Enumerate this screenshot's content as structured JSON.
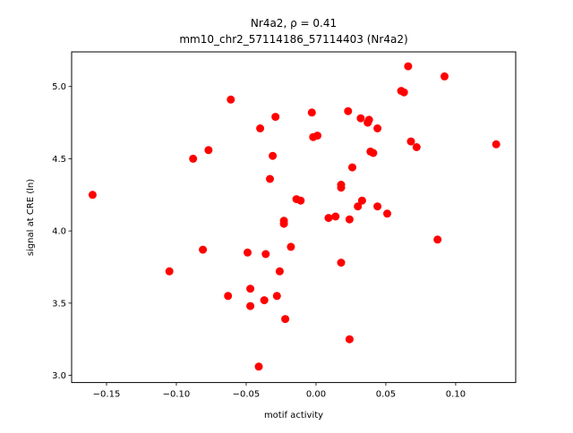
{
  "chart_data": {
    "type": "scatter",
    "title_line1": "Nr4a2, ρ = 0.41",
    "title_line2": "mm10_chr2_57114186_57114403 (Nr4a2)",
    "xlabel": "motif activity",
    "ylabel": "signal at CRE (ln)",
    "xlim": [
      -0.175,
      0.143
    ],
    "ylim": [
      2.95,
      5.24
    ],
    "xticks": [
      -0.15,
      -0.1,
      -0.05,
      0.0,
      0.05,
      0.1
    ],
    "xtick_labels": [
      "−0.15",
      "−0.10",
      "−0.05",
      "0.00",
      "0.05",
      "0.10"
    ],
    "yticks": [
      3.0,
      3.5,
      4.0,
      4.5,
      5.0
    ],
    "ytick_labels": [
      "3.0",
      "3.5",
      "4.0",
      "4.5",
      "5.0"
    ],
    "marker_color": "#ff0000",
    "grid": false,
    "points": [
      {
        "x": -0.16,
        "y": 4.25
      },
      {
        "x": -0.105,
        "y": 3.72
      },
      {
        "x": -0.088,
        "y": 4.5
      },
      {
        "x": -0.081,
        "y": 3.87
      },
      {
        "x": -0.077,
        "y": 4.56
      },
      {
        "x": -0.063,
        "y": 3.55
      },
      {
        "x": -0.061,
        "y": 4.91
      },
      {
        "x": -0.049,
        "y": 3.85
      },
      {
        "x": -0.047,
        "y": 3.48
      },
      {
        "x": -0.047,
        "y": 3.6
      },
      {
        "x": -0.04,
        "y": 4.71
      },
      {
        "x": -0.041,
        "y": 3.06
      },
      {
        "x": -0.037,
        "y": 3.52
      },
      {
        "x": -0.036,
        "y": 3.84
      },
      {
        "x": -0.033,
        "y": 4.36
      },
      {
        "x": -0.031,
        "y": 4.52
      },
      {
        "x": -0.029,
        "y": 4.79
      },
      {
        "x": -0.028,
        "y": 3.55
      },
      {
        "x": -0.026,
        "y": 3.72
      },
      {
        "x": -0.023,
        "y": 4.07
      },
      {
        "x": -0.023,
        "y": 4.05
      },
      {
        "x": -0.022,
        "y": 3.39
      },
      {
        "x": -0.018,
        "y": 3.89
      },
      {
        "x": -0.014,
        "y": 4.22
      },
      {
        "x": -0.011,
        "y": 4.21
      },
      {
        "x": -0.003,
        "y": 4.82
      },
      {
        "x": -0.002,
        "y": 4.65
      },
      {
        "x": 0.001,
        "y": 4.66
      },
      {
        "x": 0.009,
        "y": 4.09
      },
      {
        "x": 0.014,
        "y": 4.1
      },
      {
        "x": 0.018,
        "y": 4.32
      },
      {
        "x": 0.018,
        "y": 4.3
      },
      {
        "x": 0.018,
        "y": 3.78
      },
      {
        "x": 0.023,
        "y": 4.83
      },
      {
        "x": 0.024,
        "y": 4.08
      },
      {
        "x": 0.024,
        "y": 3.25
      },
      {
        "x": 0.026,
        "y": 4.44
      },
      {
        "x": 0.03,
        "y": 4.17
      },
      {
        "x": 0.032,
        "y": 4.78
      },
      {
        "x": 0.033,
        "y": 4.21
      },
      {
        "x": 0.037,
        "y": 4.75
      },
      {
        "x": 0.038,
        "y": 4.77
      },
      {
        "x": 0.039,
        "y": 4.55
      },
      {
        "x": 0.041,
        "y": 4.54
      },
      {
        "x": 0.044,
        "y": 4.71
      },
      {
        "x": 0.044,
        "y": 4.17
      },
      {
        "x": 0.051,
        "y": 4.12
      },
      {
        "x": 0.061,
        "y": 4.97
      },
      {
        "x": 0.063,
        "y": 4.96
      },
      {
        "x": 0.066,
        "y": 5.14
      },
      {
        "x": 0.068,
        "y": 4.62
      },
      {
        "x": 0.072,
        "y": 4.58
      },
      {
        "x": 0.087,
        "y": 3.94
      },
      {
        "x": 0.092,
        "y": 5.07
      },
      {
        "x": 0.129,
        "y": 4.6
      }
    ]
  }
}
